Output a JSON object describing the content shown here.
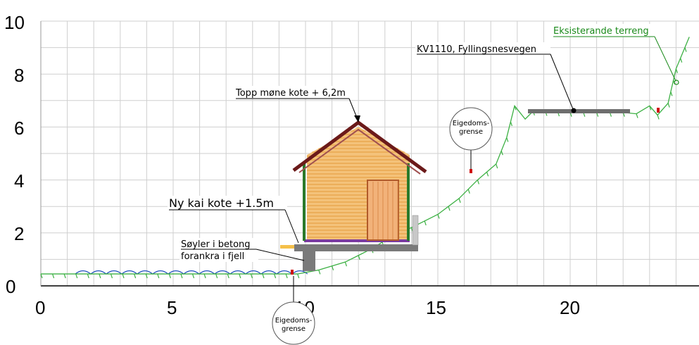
{
  "axes": {
    "x_ticks": [
      "0",
      "5",
      "10",
      "15",
      "20"
    ],
    "y_ticks": [
      "0",
      "2",
      "4",
      "6",
      "8",
      "10"
    ],
    "x_range": [
      0,
      24.5
    ],
    "y_range": [
      0,
      10
    ],
    "grid": true,
    "grid_step": 1
  },
  "annotations": {
    "topp_mone": "Topp møne kote + 6,2m",
    "ny_kai": "Ny kai kote +1.5m",
    "soyler_line1": "Søyler i betong",
    "soyler_line2": "forankra i fjell",
    "kv_road": "KV1110, Fyllingsnesvegen",
    "terreng": "Eksisterande terreng"
  },
  "boundary_markers": [
    {
      "line1": "Eigedoms-",
      "line2": "grense",
      "x": 16.2
    },
    {
      "line1": "Eigedoms-",
      "line2": "grense",
      "x": 9.6
    }
  ],
  "terrain": {
    "color": "#3cb043",
    "points": [
      [
        0,
        0.45
      ],
      [
        9.7,
        0.45
      ],
      [
        10.5,
        0.6
      ],
      [
        11.5,
        0.9
      ],
      [
        12.5,
        1.4
      ],
      [
        13.3,
        1.9
      ],
      [
        14,
        2.2
      ],
      [
        15,
        2.7
      ],
      [
        15.8,
        3.3
      ],
      [
        16.5,
        4.0
      ],
      [
        17.2,
        4.6
      ],
      [
        17.6,
        5.6
      ],
      [
        17.9,
        6.8
      ],
      [
        18.3,
        6.3
      ],
      [
        18.6,
        6.6
      ],
      [
        20,
        6.55
      ],
      [
        22,
        6.55
      ],
      [
        22.5,
        6.5
      ],
      [
        23,
        6.8
      ],
      [
        23.3,
        6.45
      ],
      [
        23.7,
        6.9
      ],
      [
        24,
        8.2
      ],
      [
        24.5,
        9.4
      ]
    ]
  },
  "sea": {
    "color": "#1f4fbf",
    "x_start": 1.3,
    "x_end": 9.5,
    "level": 0.45
  },
  "road": {
    "x_start": 18.4,
    "x_end": 22.0,
    "level": 6.6,
    "color": "#707070"
  },
  "house": {
    "wall_color": "#f4c27a",
    "board_color": "#e39a3a",
    "roof_color": "#6b1a1a",
    "trim_color": "#2a7a2a",
    "door_color": "#f2b27a",
    "floor_color": "#7a3aa0",
    "deck_color": "#7a7a7a"
  }
}
